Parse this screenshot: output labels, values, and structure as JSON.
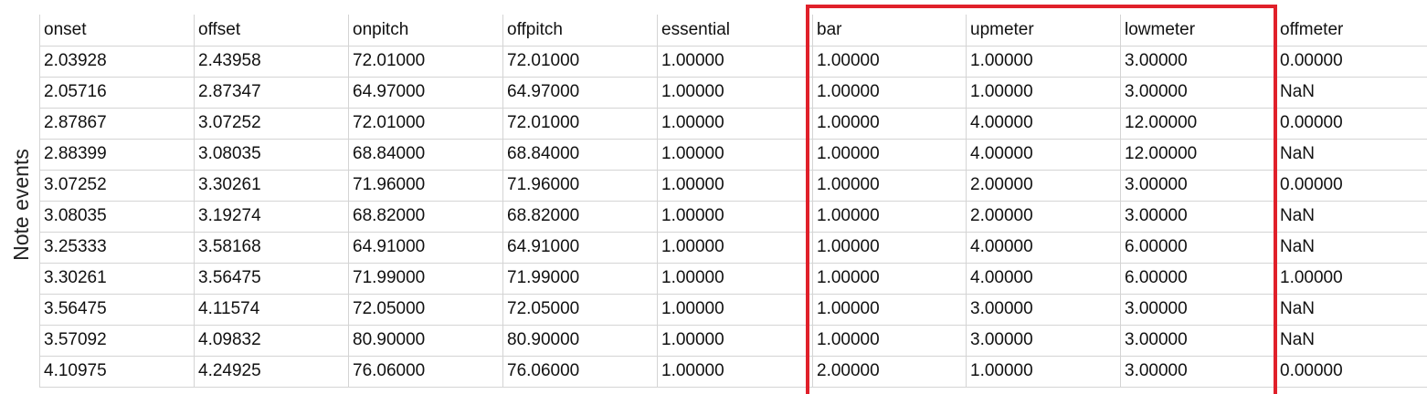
{
  "side_label": "Note events",
  "highlight_color": "#e0202a",
  "columns": [
    "onset",
    "offset",
    "onpitch",
    "offpitch",
    "essential",
    "bar",
    "upmeter",
    "lowmeter",
    "offmeter"
  ],
  "rows": [
    [
      "2.03928",
      "2.43958",
      "72.01000",
      "72.01000",
      "1.00000",
      "1.00000",
      "1.00000",
      "3.00000",
      "0.00000"
    ],
    [
      "2.05716",
      "2.87347",
      "64.97000",
      "64.97000",
      "1.00000",
      "1.00000",
      "1.00000",
      "3.00000",
      "NaN"
    ],
    [
      "2.87867",
      "3.07252",
      "72.01000",
      "72.01000",
      "1.00000",
      "1.00000",
      "4.00000",
      "12.00000",
      "0.00000"
    ],
    [
      "2.88399",
      "3.08035",
      "68.84000",
      "68.84000",
      "1.00000",
      "1.00000",
      "4.00000",
      "12.00000",
      "NaN"
    ],
    [
      "3.07252",
      "3.30261",
      "71.96000",
      "71.96000",
      "1.00000",
      "1.00000",
      "2.00000",
      "3.00000",
      "0.00000"
    ],
    [
      "3.08035",
      "3.19274",
      "68.82000",
      "68.82000",
      "1.00000",
      "1.00000",
      "2.00000",
      "3.00000",
      "NaN"
    ],
    [
      "3.25333",
      "3.58168",
      "64.91000",
      "64.91000",
      "1.00000",
      "1.00000",
      "4.00000",
      "6.00000",
      "NaN"
    ],
    [
      "3.30261",
      "3.56475",
      "71.99000",
      "71.99000",
      "1.00000",
      "1.00000",
      "4.00000",
      "6.00000",
      "1.00000"
    ],
    [
      "3.56475",
      "4.11574",
      "72.05000",
      "72.05000",
      "1.00000",
      "1.00000",
      "3.00000",
      "3.00000",
      "NaN"
    ],
    [
      "3.57092",
      "4.09832",
      "80.90000",
      "80.90000",
      "1.00000",
      "1.00000",
      "3.00000",
      "3.00000",
      "NaN"
    ],
    [
      "4.10975",
      "4.24925",
      "76.06000",
      "76.06000",
      "1.00000",
      "2.00000",
      "1.00000",
      "3.00000",
      "0.00000"
    ]
  ]
}
